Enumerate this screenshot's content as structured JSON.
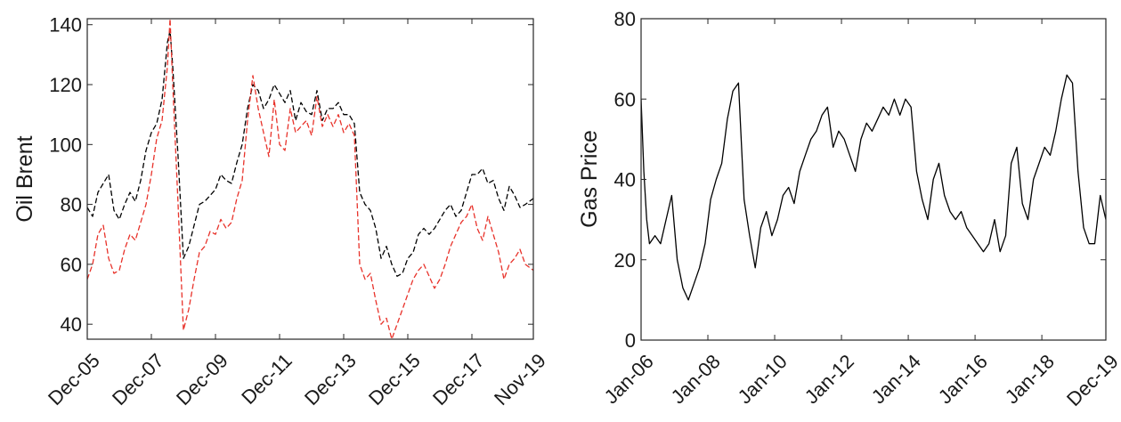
{
  "chart_data": [
    {
      "type": "line",
      "title": "",
      "xlabel": "",
      "ylabel": "Oil Brent",
      "ylim": [
        35,
        142
      ],
      "x_ticks": [
        "Dec-05",
        "Dec-07",
        "Dec-09",
        "Dec-11",
        "Dec-13",
        "Dec-15",
        "Dec-17",
        "Nov-19"
      ],
      "y_ticks": [
        40,
        60,
        80,
        100,
        120,
        140
      ],
      "grid": false,
      "legend": "none",
      "series": [
        {
          "color": "#000000",
          "dash": "dashed",
          "x": [
            "2005-12",
            "2006-02",
            "2006-04",
            "2006-06",
            "2006-08",
            "2006-10",
            "2006-12",
            "2007-02",
            "2007-04",
            "2007-06",
            "2007-08",
            "2007-10",
            "2007-12",
            "2008-02",
            "2008-04",
            "2008-06",
            "2008-07",
            "2008-08",
            "2008-10",
            "2008-12",
            "2009-02",
            "2009-04",
            "2009-06",
            "2009-08",
            "2009-10",
            "2009-12",
            "2010-02",
            "2010-04",
            "2010-06",
            "2010-08",
            "2010-10",
            "2010-12",
            "2011-02",
            "2011-04",
            "2011-06",
            "2011-08",
            "2011-10",
            "2011-12",
            "2012-02",
            "2012-04",
            "2012-06",
            "2012-08",
            "2012-10",
            "2012-12",
            "2013-02",
            "2013-04",
            "2013-06",
            "2013-08",
            "2013-10",
            "2013-12",
            "2014-02",
            "2014-04",
            "2014-06",
            "2014-08",
            "2014-10",
            "2014-12",
            "2015-02",
            "2015-04",
            "2015-06",
            "2015-08",
            "2015-10",
            "2015-12",
            "2016-02",
            "2016-04",
            "2016-06",
            "2016-08",
            "2016-10",
            "2016-12",
            "2017-02",
            "2017-04",
            "2017-06",
            "2017-08",
            "2017-10",
            "2017-12",
            "2018-02",
            "2018-04",
            "2018-06",
            "2018-08",
            "2018-10",
            "2018-12",
            "2019-02",
            "2019-04",
            "2019-06",
            "2019-08",
            "2019-11"
          ],
          "values": [
            79,
            76,
            84,
            87,
            90,
            78,
            75,
            80,
            84,
            81,
            88,
            98,
            104,
            107,
            115,
            134,
            138,
            126,
            96,
            62,
            66,
            73,
            80,
            81,
            83,
            85,
            90,
            88,
            87,
            94,
            100,
            112,
            120,
            118,
            112,
            115,
            120,
            117,
            114,
            118,
            108,
            114,
            111,
            110,
            118,
            108,
            112,
            112,
            114,
            110,
            110,
            107,
            84,
            80,
            78,
            72,
            62,
            66,
            60,
            56,
            57,
            62,
            64,
            70,
            72,
            70,
            72,
            75,
            78,
            80,
            76,
            78,
            84,
            90,
            90,
            92,
            87,
            88,
            82,
            78,
            86,
            83,
            79,
            80,
            82
          ]
        },
        {
          "color": "#e8322a",
          "dash": "dashed",
          "x": [
            "2005-12",
            "2006-02",
            "2006-04",
            "2006-06",
            "2006-08",
            "2006-10",
            "2006-12",
            "2007-02",
            "2007-04",
            "2007-06",
            "2007-08",
            "2007-10",
            "2007-12",
            "2008-02",
            "2008-04",
            "2008-06",
            "2008-07",
            "2008-08",
            "2008-10",
            "2008-12",
            "2009-02",
            "2009-04",
            "2009-06",
            "2009-08",
            "2009-10",
            "2009-12",
            "2010-02",
            "2010-04",
            "2010-06",
            "2010-08",
            "2010-10",
            "2010-12",
            "2011-02",
            "2011-04",
            "2011-06",
            "2011-08",
            "2011-10",
            "2011-12",
            "2012-02",
            "2012-04",
            "2012-06",
            "2012-08",
            "2012-10",
            "2012-12",
            "2013-02",
            "2013-04",
            "2013-06",
            "2013-08",
            "2013-10",
            "2013-12",
            "2014-02",
            "2014-04",
            "2014-06",
            "2014-08",
            "2014-10",
            "2014-12",
            "2015-02",
            "2015-04",
            "2015-06",
            "2015-08",
            "2015-10",
            "2015-12",
            "2016-02",
            "2016-04",
            "2016-06",
            "2016-08",
            "2016-10",
            "2016-12",
            "2017-02",
            "2017-04",
            "2017-06",
            "2017-08",
            "2017-10",
            "2017-12",
            "2018-02",
            "2018-04",
            "2018-06",
            "2018-08",
            "2018-10",
            "2018-12",
            "2019-02",
            "2019-04",
            "2019-06",
            "2019-08",
            "2019-11"
          ],
          "values": [
            55,
            60,
            70,
            73,
            62,
            57,
            58,
            65,
            70,
            68,
            74,
            80,
            90,
            102,
            108,
            126,
            142,
            120,
            80,
            38,
            45,
            55,
            64,
            66,
            71,
            70,
            75,
            72,
            74,
            82,
            88,
            108,
            123,
            112,
            104,
            96,
            115,
            100,
            98,
            112,
            104,
            106,
            108,
            103,
            116,
            106,
            110,
            106,
            110,
            104,
            107,
            103,
            60,
            55,
            57,
            48,
            40,
            42,
            35,
            40,
            45,
            50,
            55,
            58,
            60,
            56,
            52,
            55,
            60,
            66,
            70,
            74,
            76,
            80,
            72,
            68,
            76,
            70,
            64,
            55,
            60,
            62,
            65,
            60,
            58
          ]
        }
      ]
    },
    {
      "type": "line",
      "title": "",
      "xlabel": "",
      "ylabel": "Gas Price",
      "ylim": [
        0,
        80
      ],
      "x_ticks": [
        "Jan-06",
        "Jan-08",
        "Jan-10",
        "Jan-12",
        "Jan-14",
        "Jan-16",
        "Jan-18",
        "Dec-19"
      ],
      "y_ticks": [
        0,
        20,
        40,
        60,
        80
      ],
      "grid": false,
      "legend": "none",
      "series": [
        {
          "color": "#000000",
          "dash": "solid",
          "x": [
            "2006-01",
            "2006-02",
            "2006-03",
            "2006-04",
            "2006-06",
            "2006-08",
            "2006-10",
            "2006-12",
            "2007-02",
            "2007-04",
            "2007-06",
            "2007-08",
            "2007-10",
            "2007-12",
            "2008-02",
            "2008-04",
            "2008-06",
            "2008-08",
            "2008-10",
            "2008-12",
            "2009-02",
            "2009-04",
            "2009-06",
            "2009-08",
            "2009-10",
            "2009-12",
            "2010-02",
            "2010-04",
            "2010-06",
            "2010-08",
            "2010-10",
            "2010-12",
            "2011-02",
            "2011-04",
            "2011-06",
            "2011-08",
            "2011-10",
            "2011-12",
            "2012-02",
            "2012-04",
            "2012-06",
            "2012-08",
            "2012-10",
            "2012-12",
            "2013-02",
            "2013-04",
            "2013-06",
            "2013-08",
            "2013-10",
            "2013-12",
            "2014-02",
            "2014-04",
            "2014-06",
            "2014-08",
            "2014-10",
            "2014-12",
            "2015-02",
            "2015-04",
            "2015-06",
            "2015-08",
            "2015-10",
            "2015-12",
            "2016-02",
            "2016-04",
            "2016-06",
            "2016-08",
            "2016-10",
            "2016-12",
            "2017-02",
            "2017-04",
            "2017-06",
            "2017-08",
            "2017-10",
            "2017-12",
            "2018-02",
            "2018-04",
            "2018-06",
            "2018-08",
            "2018-10",
            "2018-12",
            "2019-02",
            "2019-04",
            "2019-06",
            "2019-08",
            "2019-10",
            "2019-12"
          ],
          "values": [
            60,
            42,
            30,
            24,
            26,
            24,
            30,
            36,
            20,
            13,
            10,
            14,
            18,
            24,
            35,
            40,
            44,
            55,
            62,
            64,
            35,
            26,
            18,
            28,
            32,
            26,
            30,
            36,
            38,
            34,
            42,
            46,
            50,
            52,
            56,
            58,
            48,
            52,
            50,
            46,
            42,
            50,
            54,
            52,
            55,
            58,
            56,
            60,
            56,
            60,
            58,
            42,
            35,
            30,
            40,
            44,
            36,
            32,
            30,
            32,
            28,
            26,
            24,
            22,
            24,
            30,
            22,
            26,
            44,
            48,
            34,
            30,
            40,
            44,
            48,
            46,
            52,
            60,
            66,
            64,
            42,
            28,
            24,
            24,
            36,
            30
          ]
        }
      ]
    }
  ]
}
